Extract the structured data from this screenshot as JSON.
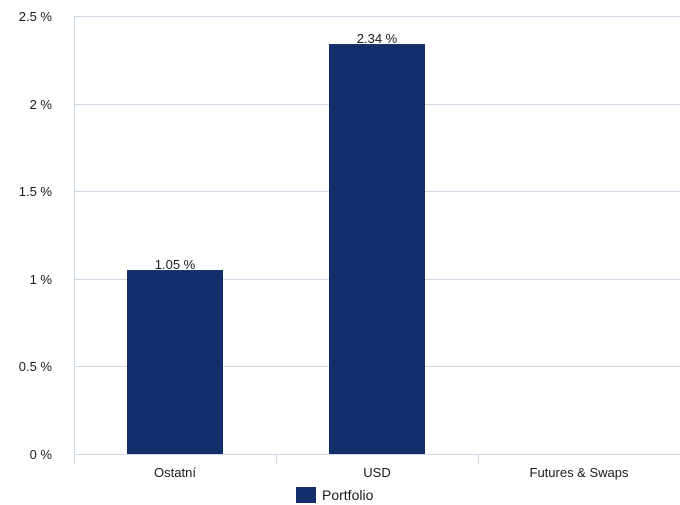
{
  "chart_data": {
    "type": "bar",
    "title": "",
    "xlabel": "",
    "ylabel": "",
    "categories": [
      "Ostatní",
      "USD",
      "Futures & Swaps"
    ],
    "series": [
      {
        "name": "Portfolio",
        "values": [
          1.05,
          2.34,
          null
        ],
        "data_labels": [
          "1.05 %",
          "2.34 %",
          ""
        ],
        "color": "#132f6b"
      }
    ],
    "ylim": [
      0,
      2.5
    ],
    "y_ticks": [
      {
        "value": 0,
        "label": "0 %"
      },
      {
        "value": 0.5,
        "label": "0.5 %"
      },
      {
        "value": 1,
        "label": "1 %"
      },
      {
        "value": 1.5,
        "label": "1.5 %"
      },
      {
        "value": 2,
        "label": "2 %"
      },
      {
        "value": 2.5,
        "label": "2.5 %"
      }
    ],
    "grid": true,
    "grid_color": "#cdd9e5",
    "legend": {
      "position": "bottom-center"
    }
  }
}
